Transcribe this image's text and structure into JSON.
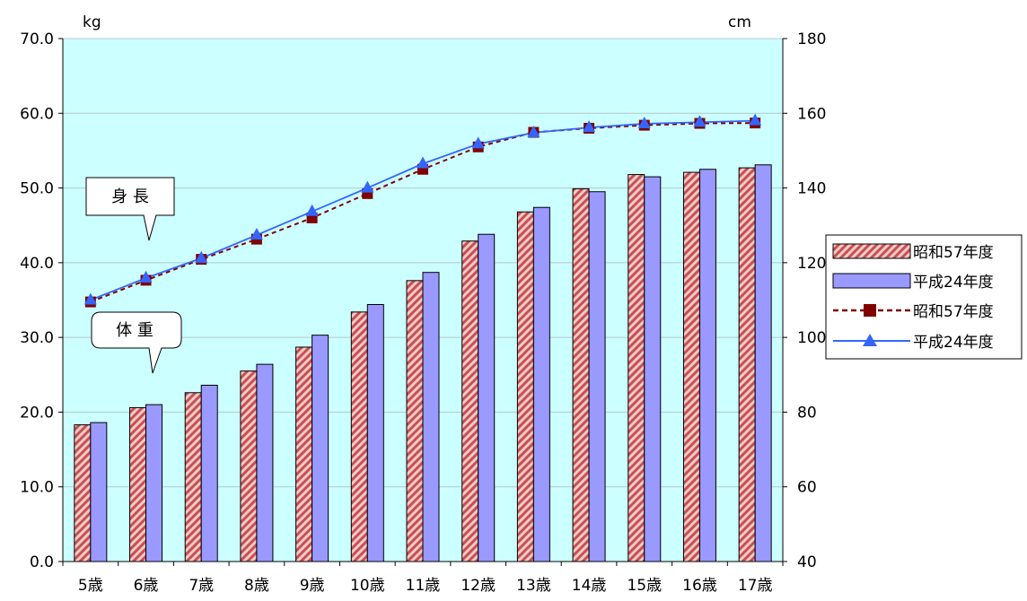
{
  "chart_data": {
    "type": "bar",
    "categories": [
      "5歳",
      "6歳",
      "7歳",
      "8歳",
      "9歳",
      "10歳",
      "11歳",
      "12歳",
      "13歳",
      "14歳",
      "15歳",
      "16歳",
      "17歳"
    ],
    "y_left": {
      "unit": "kg",
      "ylim": [
        0,
        70
      ],
      "ticks": [
        "0.0",
        "10.0",
        "20.0",
        "30.0",
        "40.0",
        "50.0",
        "60.0",
        "70.0"
      ]
    },
    "y_right": {
      "unit": "cm",
      "ylim": [
        40,
        180
      ],
      "ticks": [
        "40",
        "60",
        "80",
        "100",
        "120",
        "140",
        "160",
        "180"
      ]
    },
    "bar_series": [
      {
        "name": "昭和57年度",
        "axis": "left",
        "color": "#e8a0a0",
        "pattern": "diagonal-hatch",
        "values": [
          18.3,
          20.6,
          22.6,
          25.5,
          28.7,
          33.4,
          37.6,
          42.9,
          46.8,
          49.9,
          51.8,
          52.1,
          52.7
        ]
      },
      {
        "name": "平成24年度",
        "axis": "left",
        "color": "#9999ff",
        "values": [
          18.6,
          21.0,
          23.6,
          26.4,
          30.3,
          34.4,
          38.7,
          43.8,
          47.4,
          49.5,
          51.5,
          52.5,
          53.1
        ]
      }
    ],
    "line_series": [
      {
        "name": "昭和57年度",
        "axis": "right",
        "color": "#800000",
        "marker": "square",
        "dash": "dashed",
        "values": [
          109.5,
          115.3,
          120.9,
          126.3,
          132.0,
          138.5,
          145.0,
          151.0,
          154.9,
          156.0,
          156.8,
          157.3,
          157.4
        ]
      },
      {
        "name": "平成24年度",
        "axis": "right",
        "color": "#3366ff",
        "marker": "triangle",
        "dash": "solid",
        "values": [
          110.0,
          115.9,
          121.2,
          127.4,
          133.7,
          140.0,
          146.5,
          151.8,
          154.8,
          156.2,
          157.2,
          157.6,
          158.0
        ]
      }
    ],
    "callouts": [
      {
        "text": "身 長",
        "points_to": "height"
      },
      {
        "text": "体 重",
        "points_to": "weight"
      }
    ],
    "plot_background": "#ccffff",
    "grid": "horizontal",
    "legend_position": "right"
  },
  "legend": {
    "items": [
      {
        "label": "昭和57年度",
        "kind": "bar-hatch"
      },
      {
        "label": "平成24年度",
        "kind": "bar-solid"
      },
      {
        "label": "昭和57年度",
        "kind": "line-square-dashed"
      },
      {
        "label": "平成24年度",
        "kind": "line-triangle-solid"
      }
    ]
  }
}
